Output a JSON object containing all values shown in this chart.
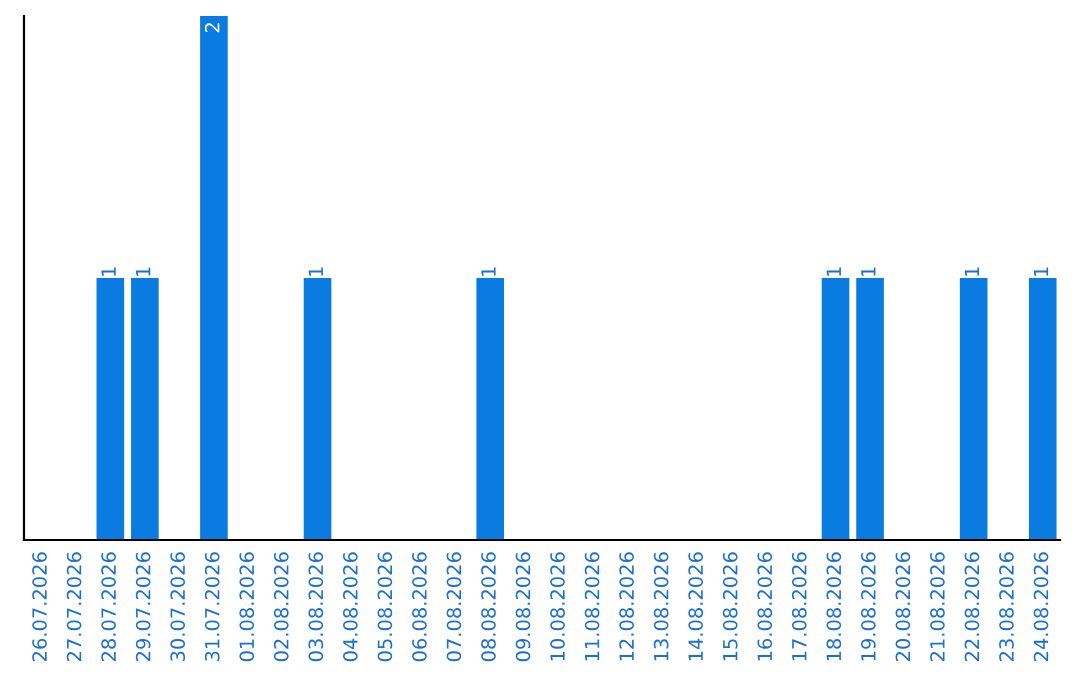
{
  "chart_data": {
    "type": "bar",
    "categories": [
      "26.07.2026",
      "27.07.2026",
      "28.07.2026",
      "29.07.2026",
      "30.07.2026",
      "31.07.2026",
      "01.08.2026",
      "02.08.2026",
      "03.08.2026",
      "04.08.2026",
      "05.08.2026",
      "06.08.2026",
      "07.08.2026",
      "08.08.2026",
      "09.08.2026",
      "10.08.2026",
      "11.08.2026",
      "12.08.2026",
      "13.08.2026",
      "14.08.2026",
      "15.08.2026",
      "16.08.2026",
      "17.08.2026",
      "18.08.2026",
      "19.08.2026",
      "20.08.2026",
      "21.08.2026",
      "22.08.2026",
      "23.08.2026",
      "24.08.2026"
    ],
    "values": [
      0,
      0,
      1,
      1,
      0,
      2,
      0,
      0,
      1,
      0,
      0,
      0,
      0,
      1,
      0,
      0,
      0,
      0,
      0,
      0,
      0,
      0,
      0,
      1,
      1,
      0,
      0,
      1,
      0,
      1
    ],
    "value_labels": [
      null,
      null,
      "1",
      "1",
      null,
      "2",
      null,
      null,
      "1",
      null,
      null,
      null,
      null,
      "1",
      null,
      null,
      null,
      null,
      null,
      null,
      null,
      null,
      null,
      "1",
      "1",
      null,
      null,
      "1",
      null,
      "1"
    ],
    "color": "#0a7be0",
    "tick_labels": "x",
    "grid": false,
    "legend": false
  }
}
